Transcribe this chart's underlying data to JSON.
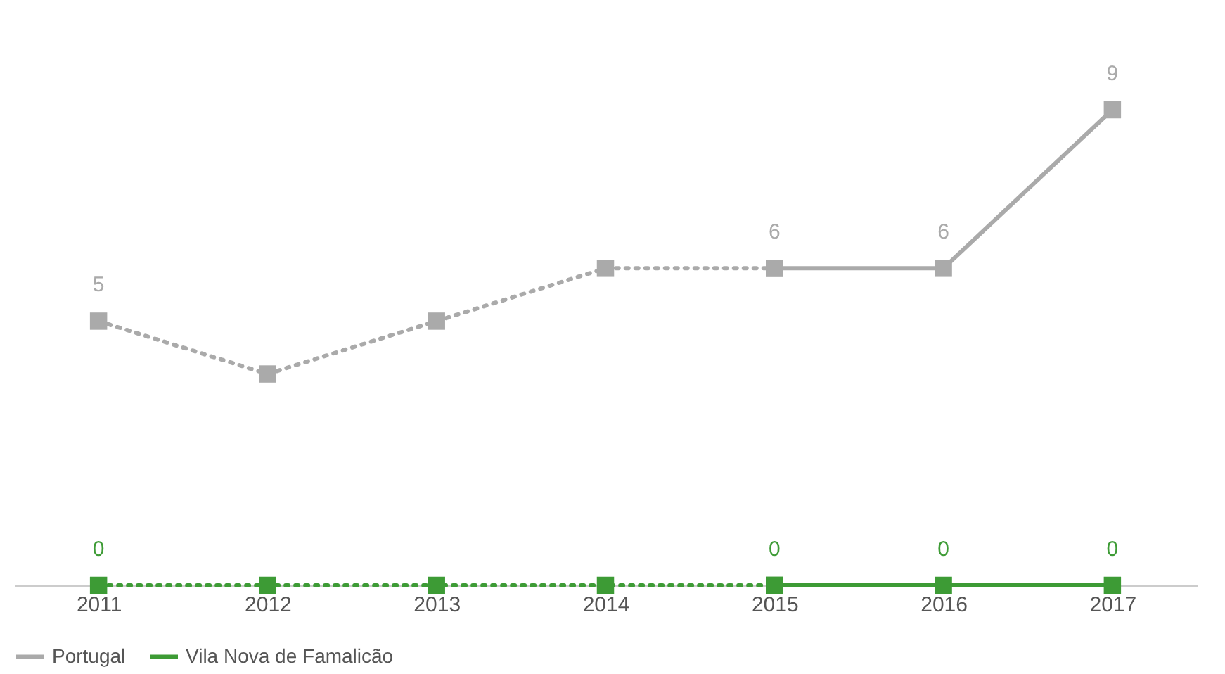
{
  "chart_data": {
    "type": "line",
    "categories": [
      "2011",
      "2012",
      "2013",
      "2014",
      "2015",
      "2016",
      "2017"
    ],
    "series": [
      {
        "color": "#aaaaaa",
        "line_style": "dotted",
        "values": [
          5,
          4,
          5,
          6,
          6,
          null,
          null
        ],
        "value_labels": [
          "5",
          null,
          null,
          null,
          null,
          null,
          null
        ]
      },
      {
        "name": "Portugal",
        "color": "#aaaaaa",
        "line_style": "solid",
        "values": [
          null,
          null,
          null,
          null,
          6,
          6,
          9
        ],
        "value_labels": [
          null,
          null,
          null,
          null,
          "6",
          "6",
          "9"
        ]
      },
      {
        "color": "#3d9b35",
        "line_style": "dotted",
        "values": [
          0,
          0,
          0,
          0,
          0,
          null,
          null
        ],
        "value_labels": [
          "0",
          null,
          null,
          null,
          null,
          null,
          null
        ]
      },
      {
        "name": "Vila Nova de Famalicão",
        "color": "#3d9b35",
        "line_style": "solid",
        "values": [
          null,
          null,
          null,
          null,
          0,
          0,
          0
        ],
        "value_labels": [
          null,
          null,
          null,
          null,
          "0",
          "0",
          "0"
        ]
      }
    ],
    "tick_labels": "x",
    "marker": "square",
    "grid": false,
    "legend": "bottom"
  }
}
